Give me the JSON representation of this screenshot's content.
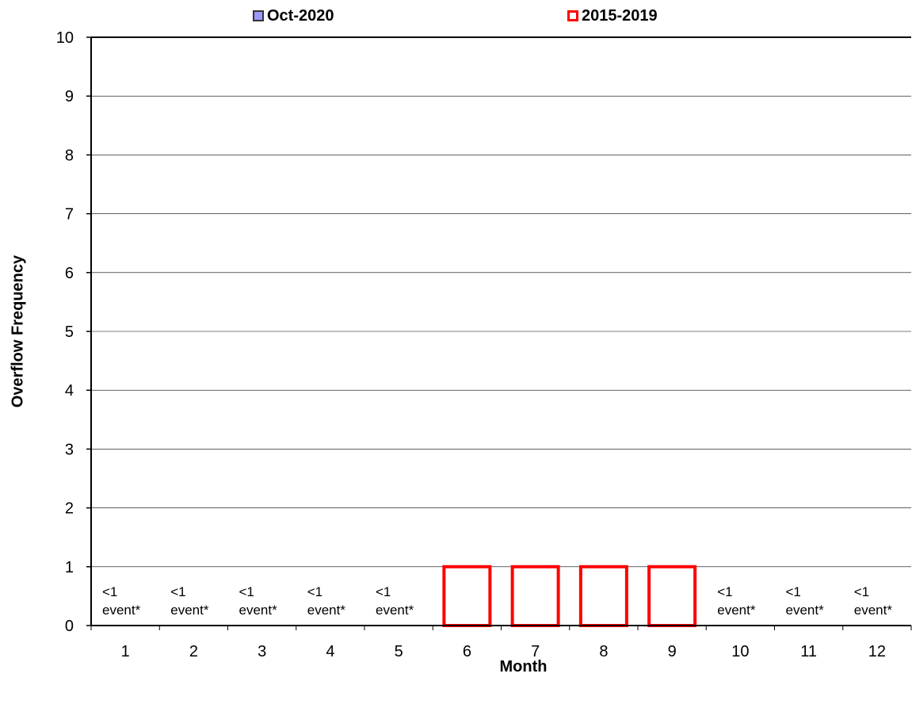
{
  "chart_data": {
    "type": "bar",
    "title": "",
    "xlabel": "Month",
    "ylabel": "Overflow Frequency",
    "ylim": [
      0,
      10
    ],
    "yticks": [
      "0",
      "1",
      "2",
      "3",
      "4",
      "5",
      "6",
      "7",
      "8",
      "9",
      "10"
    ],
    "categories": [
      "1",
      "2",
      "3",
      "4",
      "5",
      "6",
      "7",
      "8",
      "9",
      "10",
      "11",
      "12"
    ],
    "grid": true,
    "legend_position": "top",
    "series": [
      {
        "name": "Oct-2020",
        "color": "#9999ff",
        "values": [
          null,
          null,
          null,
          null,
          null,
          null,
          null,
          null,
          null,
          null,
          null,
          null
        ]
      },
      {
        "name": "2015-2019",
        "color": "#ff0000",
        "style": "outline",
        "values": [
          null,
          null,
          null,
          null,
          null,
          1,
          1,
          1,
          1,
          null,
          null,
          null
        ]
      }
    ],
    "annotations": {
      "line1": "<1",
      "line2": "event*",
      "months": [
        "1",
        "2",
        "3",
        "4",
        "5",
        "10",
        "11",
        "12"
      ]
    }
  }
}
